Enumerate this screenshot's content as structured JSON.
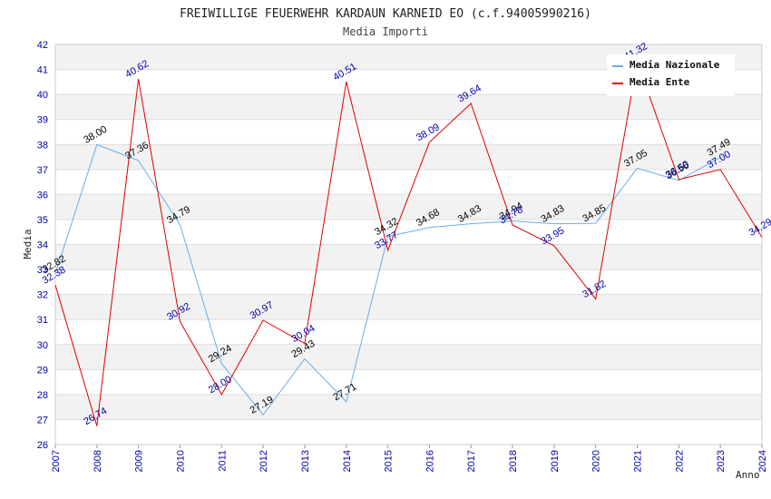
{
  "chart_data": {
    "type": "line",
    "title": "FREIWILLIGE FEUERWEHR KARDAUN KARNEID EO (c.f.94005990216)",
    "subtitle": "Media Importi",
    "xlabel": "Anno",
    "ylabel": "Media",
    "ylim": [
      26,
      42
    ],
    "yticks": [
      "26",
      "27",
      "28",
      "29",
      "30",
      "31",
      "32",
      "33",
      "34",
      "35",
      "36",
      "37",
      "38",
      "39",
      "40",
      "41",
      "42"
    ],
    "categories": [
      "2007",
      "2008",
      "2009",
      "2010",
      "2011",
      "2012",
      "2013",
      "2014",
      "2015",
      "2016",
      "2017",
      "2018",
      "2019",
      "2020",
      "2021",
      "2022",
      "2023",
      "2024"
    ],
    "grid": "horizontal bands",
    "legend_position": "top-right",
    "series": [
      {
        "name": "Media Nazionale",
        "color": "#6aaee8",
        "label_color": "#000000",
        "values": [
          32.82,
          38.0,
          37.36,
          34.79,
          29.24,
          27.19,
          29.43,
          27.71,
          34.32,
          34.68,
          34.83,
          34.94,
          34.83,
          34.85,
          37.05,
          36.56,
          37.49,
          null
        ],
        "labels": [
          "32.82",
          "38.00",
          "37.36",
          "34.79",
          "29.24",
          "27.19",
          "29.43",
          "27.71",
          "34.32",
          "34.68",
          "34.83",
          "34.94",
          "34.83",
          "34.85",
          "37.05",
          "36.56",
          "37.49",
          ""
        ]
      },
      {
        "name": "Media Ente",
        "color": "#dd0000",
        "label_color": "#0000aa",
        "values": [
          32.38,
          26.74,
          40.62,
          30.92,
          28.0,
          30.97,
          30.04,
          40.51,
          33.77,
          38.09,
          39.64,
          34.78,
          33.95,
          31.82,
          41.32,
          36.6,
          37.0,
          34.29
        ],
        "labels": [
          "32.38",
          "26.74",
          "40.62",
          "30.92",
          "28.00",
          "30.97",
          "30.04",
          "40.51",
          "33.77",
          "38.09",
          "39.64",
          "34.78",
          "33.95",
          "31.82",
          "41.32",
          "36.60",
          "37.00",
          "34.29"
        ]
      }
    ]
  }
}
